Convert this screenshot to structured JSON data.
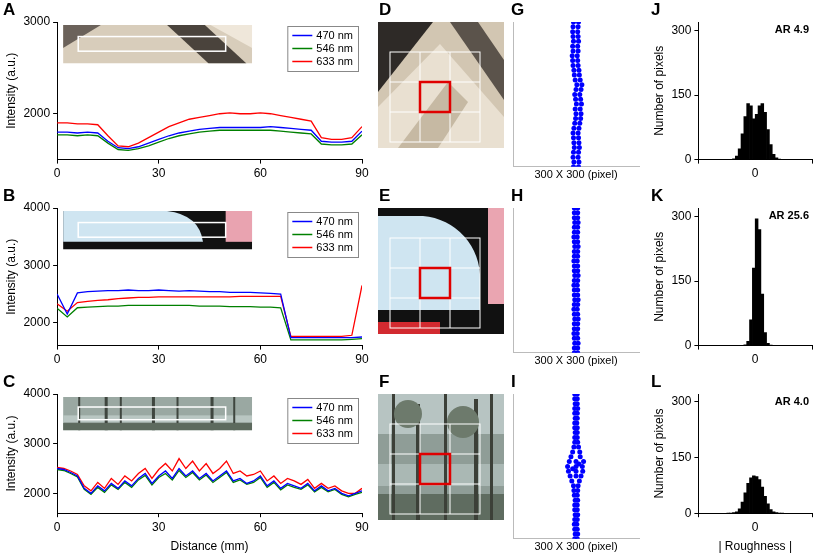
{
  "chart_data": [
    {
      "panel": "A",
      "type": "line",
      "y_label": "Intensity (a.u.)",
      "x": [
        0,
        3,
        6,
        9,
        12,
        15,
        18,
        21,
        24,
        27,
        30,
        33,
        36,
        39,
        42,
        45,
        48,
        51,
        54,
        57,
        60,
        63,
        66,
        69,
        72,
        75,
        78,
        81,
        84,
        87,
        90
      ],
      "series": [
        {
          "name": "470 nm",
          "color": "#0000ff",
          "values": [
            1800,
            1800,
            1790,
            1800,
            1790,
            1700,
            1630,
            1620,
            1640,
            1680,
            1720,
            1760,
            1790,
            1810,
            1830,
            1840,
            1850,
            1850,
            1850,
            1850,
            1850,
            1860,
            1850,
            1840,
            1830,
            1820,
            1700,
            1690,
            1690,
            1700,
            1810
          ]
        },
        {
          "name": "546 nm",
          "color": "#008000",
          "values": [
            1770,
            1770,
            1760,
            1770,
            1760,
            1680,
            1610,
            1600,
            1620,
            1650,
            1690,
            1730,
            1760,
            1780,
            1800,
            1810,
            1820,
            1820,
            1820,
            1820,
            1820,
            1820,
            1810,
            1800,
            1790,
            1780,
            1670,
            1660,
            1660,
            1670,
            1770
          ]
        },
        {
          "name": "633 nm",
          "color": "#ff0000",
          "values": [
            1900,
            1900,
            1890,
            1890,
            1880,
            1760,
            1650,
            1640,
            1680,
            1740,
            1800,
            1860,
            1900,
            1940,
            1960,
            1980,
            2000,
            2010,
            2000,
            2000,
            2010,
            2000,
            1980,
            1960,
            1940,
            1920,
            1740,
            1720,
            1720,
            1740,
            1860
          ]
        }
      ],
      "xlim": [
        0,
        90
      ],
      "xticks": [
        0,
        30,
        60,
        90
      ],
      "ylim": [
        1500,
        3000
      ],
      "yticks": [
        2000,
        3000
      ],
      "grid": false,
      "legend": "upper right"
    },
    {
      "panel": "B",
      "type": "line",
      "y_label": "Intensity (a.u.)",
      "x": [
        0,
        3,
        6,
        9,
        12,
        15,
        18,
        21,
        24,
        27,
        30,
        33,
        36,
        39,
        42,
        45,
        48,
        51,
        54,
        57,
        60,
        63,
        66,
        69,
        72,
        75,
        78,
        81,
        84,
        87,
        90
      ],
      "series": [
        {
          "name": "470 nm",
          "color": "#0000ff",
          "values": [
            2500,
            2150,
            2520,
            2540,
            2550,
            2560,
            2560,
            2570,
            2560,
            2560,
            2570,
            2560,
            2550,
            2560,
            2550,
            2540,
            2540,
            2530,
            2530,
            2530,
            2520,
            2510,
            2500,
            1740,
            1740,
            1740,
            1740,
            1740,
            1740,
            1740,
            1750
          ]
        },
        {
          "name": "546 nm",
          "color": "#008000",
          "values": [
            2250,
            2100,
            2260,
            2270,
            2280,
            2290,
            2290,
            2300,
            2300,
            2300,
            2300,
            2300,
            2300,
            2300,
            2290,
            2290,
            2290,
            2280,
            2280,
            2280,
            2270,
            2270,
            2260,
            1700,
            1700,
            1700,
            1700,
            1700,
            1700,
            1710,
            1720
          ]
        },
        {
          "name": "633 nm",
          "color": "#ff0000",
          "values": [
            2330,
            2200,
            2350,
            2370,
            2390,
            2400,
            2420,
            2430,
            2440,
            2440,
            2450,
            2450,
            2450,
            2450,
            2450,
            2450,
            2450,
            2450,
            2460,
            2460,
            2460,
            2460,
            2460,
            1760,
            1760,
            1760,
            1760,
            1760,
            1760,
            1780,
            2650
          ]
        }
      ],
      "xlim": [
        0,
        90
      ],
      "xticks": [
        0,
        30,
        60,
        90
      ],
      "ylim": [
        1600,
        4000
      ],
      "yticks": [
        2000,
        3000,
        4000
      ],
      "grid": false,
      "legend": "upper right"
    },
    {
      "panel": "C",
      "type": "line",
      "y_label": "Intensity (a.u.)",
      "x_label": "Distance (mm)",
      "x": [
        0,
        2,
        4,
        6,
        8,
        10,
        12,
        14,
        16,
        18,
        20,
        22,
        24,
        26,
        28,
        30,
        32,
        34,
        36,
        38,
        40,
        42,
        44,
        46,
        48,
        50,
        52,
        54,
        56,
        58,
        60,
        62,
        64,
        66,
        68,
        70,
        72,
        74,
        76,
        78,
        80,
        82,
        84,
        86,
        88,
        90
      ],
      "series": [
        {
          "name": "470 nm",
          "color": "#0000ff",
          "values": [
            2500,
            2480,
            2420,
            2350,
            2100,
            2000,
            2150,
            2050,
            2200,
            2100,
            2250,
            2150,
            2300,
            2400,
            2200,
            2350,
            2450,
            2300,
            2500,
            2350,
            2450,
            2300,
            2400,
            2250,
            2350,
            2450,
            2250,
            2300,
            2200,
            2250,
            2350,
            2150,
            2250,
            2100,
            2200,
            2150,
            2100,
            2200,
            2050,
            2150,
            2050,
            2100,
            2000,
            1950,
            2000,
            2050
          ]
        },
        {
          "name": "546 nm",
          "color": "#008000",
          "values": [
            2480,
            2460,
            2400,
            2330,
            2080,
            1980,
            2120,
            2020,
            2170,
            2080,
            2220,
            2120,
            2270,
            2360,
            2170,
            2320,
            2400,
            2270,
            2460,
            2320,
            2420,
            2270,
            2370,
            2220,
            2320,
            2420,
            2220,
            2270,
            2180,
            2220,
            2320,
            2120,
            2220,
            2070,
            2170,
            2120,
            2080,
            2170,
            2030,
            2120,
            2030,
            2080,
            1980,
            1930,
            1980,
            2020
          ]
        },
        {
          "name": "633 nm",
          "color": "#ff0000",
          "values": [
            2520,
            2500,
            2450,
            2380,
            2150,
            2050,
            2220,
            2100,
            2300,
            2180,
            2350,
            2250,
            2400,
            2500,
            2300,
            2480,
            2600,
            2450,
            2700,
            2500,
            2650,
            2450,
            2600,
            2400,
            2500,
            2650,
            2400,
            2450,
            2350,
            2380,
            2450,
            2250,
            2350,
            2200,
            2300,
            2250,
            2180,
            2280,
            2100,
            2200,
            2100,
            2150,
            2050,
            2000,
            2000,
            2100
          ]
        }
      ],
      "xlim": [
        0,
        90
      ],
      "xticks": [
        0,
        30,
        60,
        90
      ],
      "ylim": [
        1600,
        4000
      ],
      "yticks": [
        2000,
        3000,
        4000
      ],
      "grid": false,
      "legend": "upper right"
    },
    {
      "panel": "G",
      "type": "scatter",
      "x_label": "300 X 300 (pixel)",
      "series": [
        {
          "color": "#0000ff",
          "x": [
            -6,
            6,
            -5,
            7,
            -7,
            5,
            -6,
            6,
            -4,
            8,
            -5,
            7,
            -6,
            6,
            -7,
            5,
            -5,
            7,
            -3,
            9,
            -1,
            11,
            0,
            12,
            -2,
            10,
            1,
            13,
            -1,
            11,
            -3,
            9,
            0,
            12,
            2,
            14,
            -2,
            10,
            -4,
            8,
            -5,
            7,
            -7,
            5,
            -8,
            4,
            -9,
            3,
            -7,
            5,
            -8,
            4,
            -6,
            6,
            -7,
            5,
            -8,
            4,
            -7,
            5,
            -6,
            6
          ],
          "values": [
            0,
            0,
            10,
            10,
            20,
            20,
            30,
            30,
            40,
            40,
            50,
            50,
            60,
            60,
            70,
            70,
            80,
            80,
            90,
            90,
            100,
            100,
            110,
            110,
            120,
            120,
            130,
            130,
            140,
            140,
            150,
            150,
            160,
            160,
            170,
            170,
            180,
            180,
            190,
            190,
            200,
            200,
            210,
            210,
            220,
            220,
            230,
            230,
            240,
            240,
            250,
            250,
            260,
            260,
            270,
            270,
            280,
            280,
            290,
            290,
            300,
            300
          ]
        }
      ],
      "xlim": [
        -150,
        150
      ],
      "ylim": [
        0,
        300
      ],
      "tick_labels": false,
      "grid": false
    },
    {
      "panel": "H",
      "type": "scatter",
      "x_label": "300 X 300 (pixel)",
      "series": [
        {
          "color": "#0000ff",
          "x": [
            -4,
            4,
            -4,
            4,
            -3,
            5,
            -4,
            4,
            -5,
            3,
            -4,
            4,
            -4,
            4,
            -3,
            5,
            -4,
            4,
            -5,
            3,
            -4,
            4,
            -3,
            5,
            -4,
            4,
            -4,
            4,
            -5,
            3,
            -4,
            4,
            -3,
            5,
            -4,
            4,
            -4,
            4,
            -5,
            3,
            -4,
            4,
            -4,
            4,
            -3,
            5,
            -4,
            4,
            -5,
            3,
            -4,
            4,
            -4,
            4,
            -3,
            5,
            -4,
            4,
            -4,
            4,
            -4,
            4
          ],
          "values": [
            0,
            0,
            10,
            10,
            20,
            20,
            30,
            30,
            40,
            40,
            50,
            50,
            60,
            60,
            70,
            70,
            80,
            80,
            90,
            90,
            100,
            100,
            110,
            110,
            120,
            120,
            130,
            130,
            140,
            140,
            150,
            150,
            160,
            160,
            170,
            170,
            180,
            180,
            190,
            190,
            200,
            200,
            210,
            210,
            220,
            220,
            230,
            230,
            240,
            240,
            250,
            250,
            260,
            260,
            270,
            270,
            280,
            280,
            290,
            290,
            300,
            300
          ]
        }
      ],
      "xlim": [
        -150,
        150
      ],
      "ylim": [
        0,
        300
      ],
      "tick_labels": false,
      "grid": false
    },
    {
      "panel": "I",
      "type": "scatter",
      "x_label": "300 X 300 (pixel)",
      "series": [
        {
          "color": "#0000ff",
          "x": [
            -3,
            3,
            -2,
            4,
            -3,
            3,
            -4,
            2,
            -3,
            3,
            -2,
            4,
            -3,
            3,
            -3,
            3,
            -2,
            4,
            -4,
            3,
            -5,
            4,
            -6,
            5,
            -10,
            8,
            -14,
            12,
            -18,
            16,
            -20,
            15,
            -16,
            18,
            -12,
            10,
            -8,
            9,
            -5,
            6,
            -3,
            4,
            -3,
            3,
            -2,
            3,
            -3,
            3,
            -3,
            2,
            -2,
            3,
            -3,
            3,
            -3,
            4,
            -2,
            3,
            -3,
            3,
            -3,
            3,
            0,
            0,
            0,
            0,
            -8,
            7
          ],
          "values": [
            0,
            0,
            10,
            10,
            20,
            20,
            30,
            30,
            40,
            40,
            50,
            50,
            60,
            60,
            70,
            70,
            80,
            80,
            90,
            90,
            100,
            100,
            110,
            110,
            120,
            120,
            130,
            130,
            140,
            140,
            150,
            150,
            160,
            160,
            170,
            170,
            180,
            180,
            190,
            190,
            200,
            200,
            210,
            210,
            220,
            220,
            230,
            230,
            240,
            240,
            250,
            250,
            260,
            260,
            270,
            270,
            280,
            280,
            290,
            290,
            300,
            300,
            130,
            140,
            150,
            160,
            145,
            155
          ]
        }
      ],
      "xlim": [
        -150,
        150
      ],
      "ylim": [
        0,
        300
      ],
      "tick_labels": false,
      "grid": false
    },
    {
      "panel": "J",
      "type": "histogram",
      "y_label": "Number of pixels",
      "annotation": "AR 4.9",
      "color": "#000000",
      "bins": [
        -20,
        -18,
        -16,
        -14,
        -12,
        -10,
        -8,
        -6,
        -4,
        -2,
        0,
        2,
        4,
        6,
        8,
        10,
        12,
        14,
        16,
        18,
        20
      ],
      "values": [
        0,
        0,
        2,
        8,
        25,
        60,
        100,
        130,
        125,
        95,
        105,
        125,
        130,
        110,
        70,
        35,
        12,
        4,
        1,
        0
      ],
      "xlim": [
        -40,
        40
      ],
      "xticks": [
        0
      ],
      "ylim": [
        0,
        320
      ],
      "yticks": [
        0,
        150,
        300
      ],
      "grid": false
    },
    {
      "panel": "K",
      "type": "histogram",
      "y_label": "Number of pixels",
      "annotation": "AR 25.6",
      "color": "#000000",
      "bins": [
        -20,
        -18,
        -16,
        -14,
        -12,
        -10,
        -8,
        -6,
        -4,
        -2,
        0,
        2,
        4,
        6,
        8,
        10,
        12,
        14,
        16,
        18,
        20
      ],
      "values": [
        0,
        0,
        0,
        0,
        0,
        0,
        2,
        10,
        60,
        180,
        295,
        270,
        120,
        30,
        5,
        1,
        0,
        0,
        0,
        0
      ],
      "xlim": [
        -40,
        40
      ],
      "xticks": [
        0
      ],
      "ylim": [
        0,
        320
      ],
      "yticks": [
        0,
        150,
        300
      ],
      "grid": false
    },
    {
      "panel": "L",
      "type": "histogram",
      "y_label": "Number of pixels",
      "x_label": "| Roughness |",
      "annotation": "AR 4.0",
      "color": "#000000",
      "bins": [
        -20,
        -18,
        -16,
        -14,
        -12,
        -10,
        -8,
        -6,
        -4,
        -2,
        0,
        2,
        4,
        6,
        8,
        10,
        12,
        14,
        16,
        18,
        20
      ],
      "values": [
        0,
        0,
        1,
        4,
        12,
        30,
        55,
        80,
        95,
        100,
        98,
        90,
        70,
        45,
        25,
        10,
        4,
        1,
        0,
        0
      ],
      "xlim": [
        -40,
        40
      ],
      "xticks": [
        0
      ],
      "ylim": [
        0,
        320
      ],
      "yticks": [
        0,
        150,
        300
      ],
      "grid": false
    }
  ],
  "images": [
    {
      "panel": "D"
    },
    {
      "panel": "E"
    },
    {
      "panel": "F"
    }
  ]
}
